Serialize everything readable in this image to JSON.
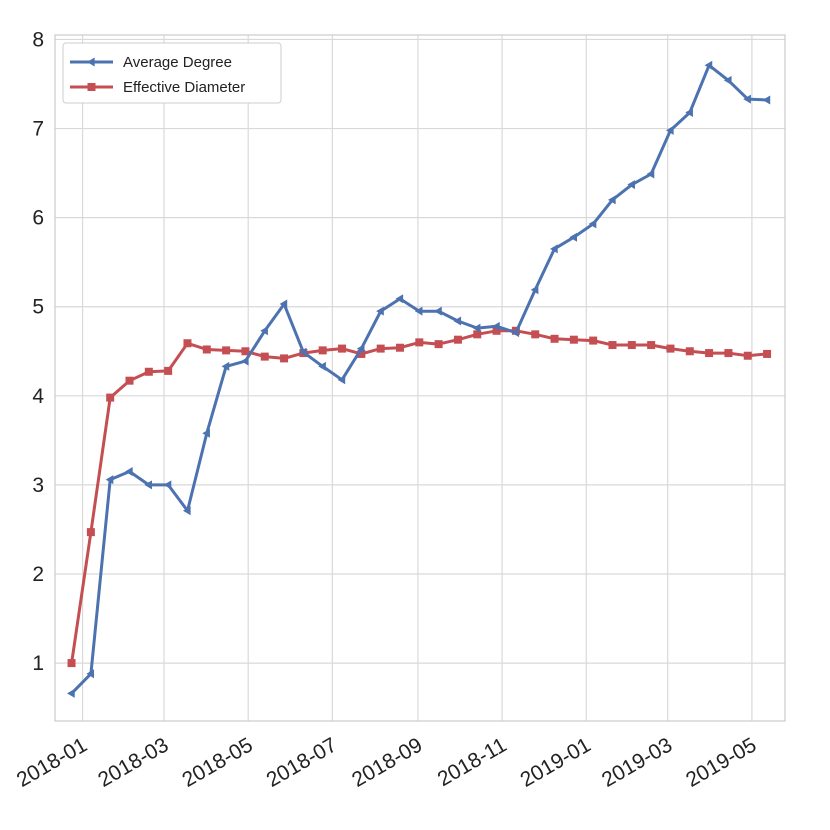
{
  "chart_data": {
    "type": "line",
    "title": "",
    "xlabel": "",
    "ylabel": "",
    "x_axis": {
      "type": "date",
      "range": [
        "2017-12-12",
        "2019-05-25"
      ],
      "ticks": [
        "2018-01-01",
        "2018-03-01",
        "2018-05-01",
        "2018-07-01",
        "2018-09-01",
        "2018-11-01",
        "2019-01-01",
        "2019-03-01",
        "2019-05-01"
      ],
      "tick_labels": [
        "2018-01",
        "2018-03",
        "2018-05",
        "2018-07",
        "2018-09",
        "2018-11",
        "2019-01",
        "2019-03",
        "2019-05"
      ],
      "tick_rotation_deg": 30
    },
    "y_axis": {
      "range": [
        0.35,
        8.05
      ],
      "ticks": [
        1,
        2,
        3,
        4,
        5,
        6,
        7,
        8
      ],
      "tick_labels": [
        "1",
        "2",
        "3",
        "4",
        "5",
        "6",
        "7",
        "8"
      ]
    },
    "grid": true,
    "legend": {
      "position": "top-left"
    },
    "x": [
      "2017-12-24",
      "2018-01-07",
      "2018-01-21",
      "2018-02-04",
      "2018-02-18",
      "2018-03-04",
      "2018-03-18",
      "2018-04-01",
      "2018-04-15",
      "2018-04-29",
      "2018-05-13",
      "2018-05-27",
      "2018-06-10",
      "2018-06-24",
      "2018-07-08",
      "2018-07-22",
      "2018-08-05",
      "2018-08-19",
      "2018-09-02",
      "2018-09-16",
      "2018-09-30",
      "2018-10-14",
      "2018-10-28",
      "2018-11-11",
      "2018-11-25",
      "2018-12-09",
      "2018-12-23",
      "2019-01-06",
      "2019-01-20",
      "2019-02-03",
      "2019-02-17",
      "2019-03-03",
      "2019-03-17",
      "2019-03-31",
      "2019-04-14",
      "2019-04-28",
      "2019-05-12"
    ],
    "series": [
      {
        "name": "Average Degree",
        "color": "#4c72b0",
        "marker": "triangle-left",
        "values": [
          0.66,
          0.88,
          3.06,
          3.15,
          3.0,
          3.0,
          2.71,
          3.58,
          4.33,
          4.39,
          4.73,
          5.03,
          4.49,
          4.33,
          4.18,
          4.53,
          4.95,
          5.09,
          4.95,
          4.95,
          4.84,
          4.76,
          4.78,
          4.71,
          5.19,
          5.65,
          5.78,
          5.93,
          6.2,
          6.37,
          6.49,
          6.98,
          7.18,
          7.71,
          7.54,
          7.33,
          7.32
        ]
      },
      {
        "name": "Effective Diameter",
        "color": "#c44e52",
        "marker": "square",
        "values": [
          1.0,
          2.47,
          3.98,
          4.17,
          4.27,
          4.28,
          4.59,
          4.52,
          4.51,
          4.5,
          4.44,
          4.42,
          4.48,
          4.51,
          4.53,
          4.47,
          4.53,
          4.54,
          4.6,
          4.58,
          4.63,
          4.69,
          4.73,
          4.73,
          4.69,
          4.64,
          4.63,
          4.62,
          4.57,
          4.57,
          4.57,
          4.53,
          4.5,
          4.48,
          4.48,
          4.45,
          4.47
        ]
      }
    ]
  }
}
